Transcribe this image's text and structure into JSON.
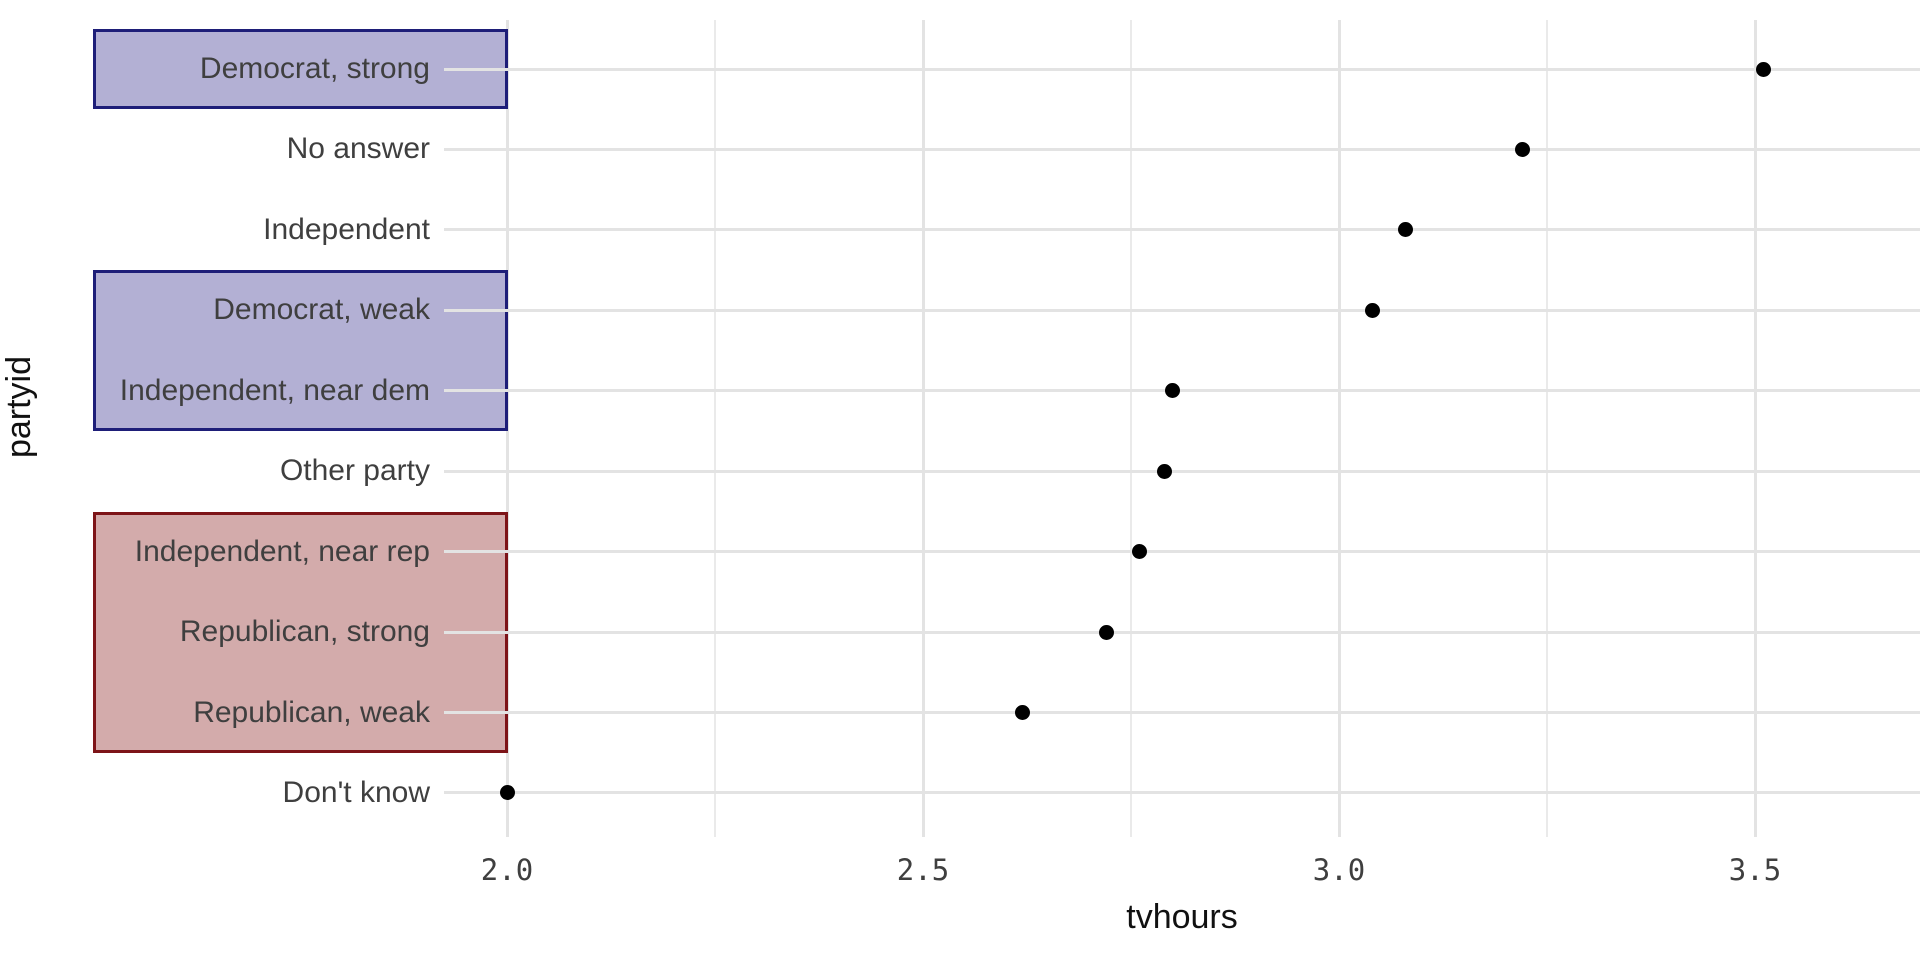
{
  "chart_data": {
    "type": "scatter",
    "title": "",
    "xlabel": "tvhours",
    "ylabel": "partyid",
    "categories": [
      "Democrat, strong",
      "No answer",
      "Independent",
      "Democrat, weak",
      "Independent, near dem",
      "Other party",
      "Independent, near rep",
      "Republican, strong",
      "Republican, weak",
      "Don't know"
    ],
    "values": [
      3.51,
      3.22,
      3.08,
      3.04,
      2.8,
      2.79,
      2.76,
      2.72,
      2.62,
      2.0
    ],
    "xlim": [
      1.92,
      3.7
    ],
    "x_major_ticks": [
      2.0,
      2.5,
      3.0,
      3.5
    ],
    "x_major_tick_labels": [
      "2.0",
      "2.5",
      "3.0",
      "3.5"
    ],
    "x_minor_ticks": [
      2.25,
      2.75,
      3.25
    ],
    "grid": "on",
    "legend": "none",
    "point_color": "#000000",
    "highlights": [
      {
        "name": "democrat-strong-highlight",
        "group": "democrat",
        "row_start": 0,
        "row_end": 0,
        "fill": "#b3b0d4",
        "border": "#1e1e78"
      },
      {
        "name": "democrat-lean-highlight",
        "group": "democrat",
        "row_start": 3,
        "row_end": 4,
        "fill": "#b3b0d4",
        "border": "#1e1e78"
      },
      {
        "name": "republican-highlight",
        "group": "republican",
        "row_start": 6,
        "row_end": 8,
        "fill": "#d3abab",
        "border": "#7d1418"
      }
    ],
    "colors": {
      "grid_major": "#e3e3e3",
      "grid_minor": "#eaeaea",
      "label_text": "#3f3f3f",
      "title_text": "#111111",
      "background": "#ffffff"
    }
  }
}
